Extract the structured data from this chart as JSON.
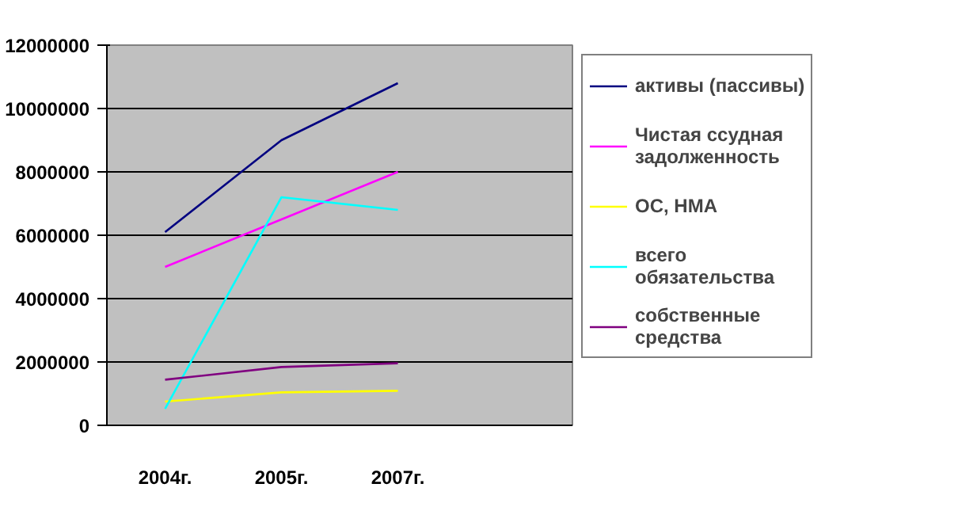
{
  "chart_data": {
    "type": "line",
    "categories": [
      "2004г.",
      "2005г.",
      "2007г.",
      null
    ],
    "ylim": [
      0,
      12000000
    ],
    "yticks": [
      0,
      2000000,
      4000000,
      6000000,
      8000000,
      10000000,
      12000000
    ],
    "grid": "y",
    "legend": "right",
    "marker": "none",
    "line_style": "solid",
    "series": [
      {
        "name": "активы (пассивы)",
        "color": "#000080",
        "values": [
          6100000,
          9000000,
          10800000,
          null
        ]
      },
      {
        "name": "Чистая ссудная задолженность",
        "color": "#ff00ff",
        "values": [
          5000000,
          6500000,
          8000000,
          null
        ]
      },
      {
        "name": "ОС, НМА",
        "color": "#ffff00",
        "values": [
          750000,
          1040000,
          1090000,
          null
        ]
      },
      {
        "name": "всего обязательства",
        "color": "#00ffff",
        "values": [
          520000,
          7200000,
          6800000,
          null
        ]
      },
      {
        "name": "собственные средства",
        "color": "#800080",
        "values": [
          1440000,
          1840000,
          1960000,
          null
        ]
      }
    ]
  }
}
